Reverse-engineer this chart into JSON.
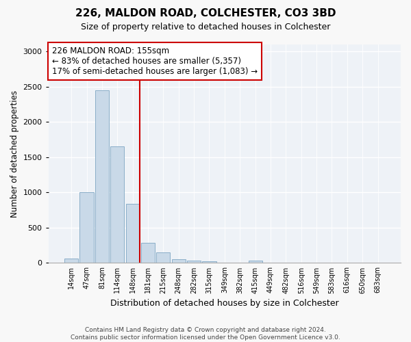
{
  "title": "226, MALDON ROAD, COLCHESTER, CO3 3BD",
  "subtitle": "Size of property relative to detached houses in Colchester",
  "xlabel": "Distribution of detached houses by size in Colchester",
  "ylabel": "Number of detached properties",
  "bar_color": "#c9d9e8",
  "bar_edge_color": "#8aaec8",
  "bins": [
    14,
    47,
    81,
    114,
    148,
    181,
    215,
    248,
    282,
    315,
    349,
    382,
    415,
    449,
    482,
    516,
    549,
    583,
    616,
    650,
    683
  ],
  "counts": [
    60,
    1000,
    2450,
    1650,
    840,
    290,
    145,
    55,
    35,
    25,
    0,
    0,
    30,
    0,
    0,
    0,
    0,
    0,
    0,
    0,
    0
  ],
  "property_size": 155,
  "vline_color": "#cc0000",
  "annotation_text": "226 MALDON ROAD: 155sqm\n← 83% of detached houses are smaller (5,357)\n17% of semi-detached houses are larger (1,083) →",
  "annotation_box_color": "#ffffff",
  "annotation_box_edge_color": "#cc0000",
  "ylim": [
    0,
    3100
  ],
  "yticks": [
    0,
    500,
    1000,
    1500,
    2000,
    2500,
    3000
  ],
  "footer_text": "Contains HM Land Registry data © Crown copyright and database right 2024.\nContains public sector information licensed under the Open Government Licence v3.0.",
  "bg_color": "#f8f8f8",
  "plot_bg_color": "#eef2f7"
}
